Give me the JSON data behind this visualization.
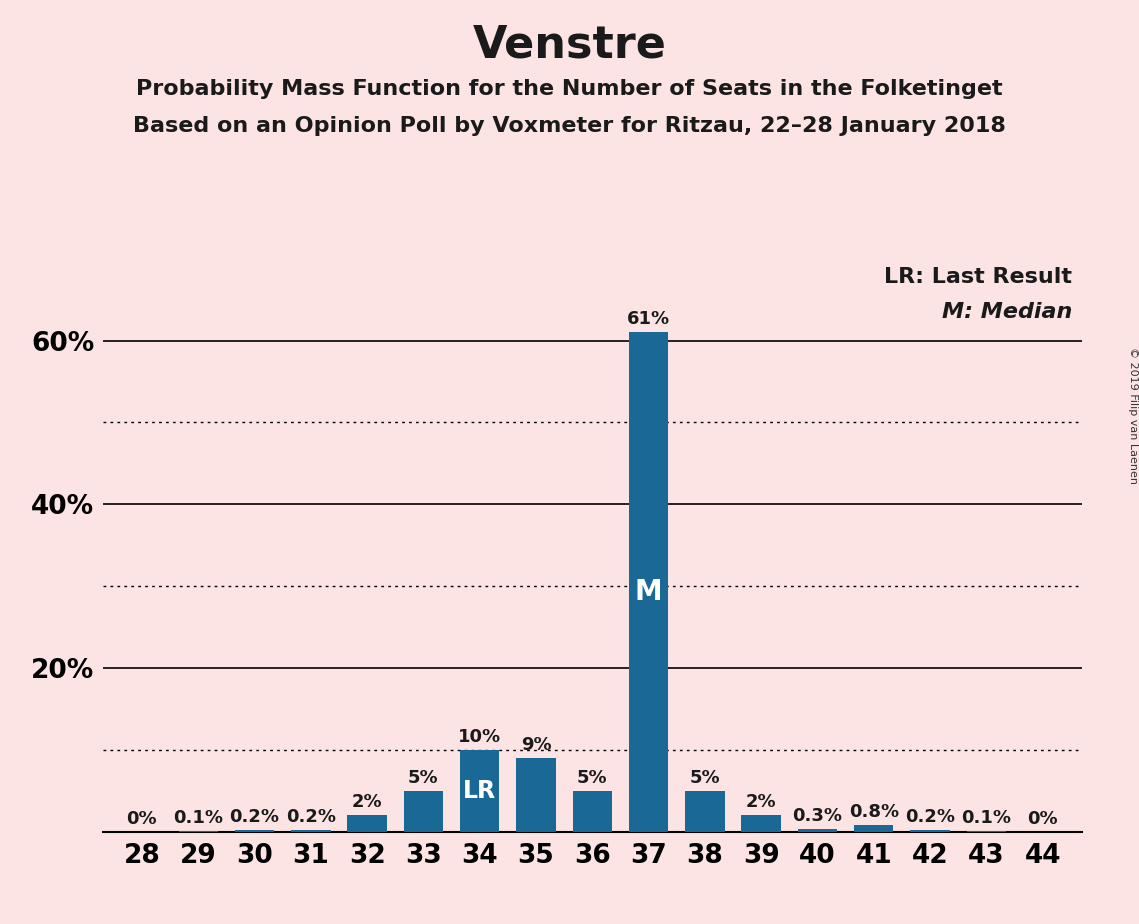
{
  "title": "Venstre",
  "subtitle1": "Probability Mass Function for the Number of Seats in the Folketinget",
  "subtitle2": "Based on an Opinion Poll by Voxmeter for Ritzau, 22–28 January 2018",
  "copyright": "© 2019 Filip van Laenen",
  "legend_lr": "LR: Last Result",
  "legend_m": "M: Median",
  "seats": [
    28,
    29,
    30,
    31,
    32,
    33,
    34,
    35,
    36,
    37,
    38,
    39,
    40,
    41,
    42,
    43,
    44
  ],
  "probabilities": [
    0.0,
    0.1,
    0.2,
    0.2,
    2.0,
    5.0,
    10.0,
    9.0,
    5.0,
    61.0,
    5.0,
    2.0,
    0.3,
    0.8,
    0.2,
    0.1,
    0.0
  ],
  "labels": [
    "0%",
    "0.1%",
    "0.2%",
    "0.2%",
    "2%",
    "5%",
    "10%",
    "9%",
    "5%",
    "61%",
    "5%",
    "2%",
    "0.3%",
    "0.8%",
    "0.2%",
    "0.1%",
    "0%"
  ],
  "bar_color": "#1a6896",
  "background_color": "#fce4e4",
  "lr_seat": 34,
  "median_seat": 37,
  "ylim_max": 70,
  "solid_lines": [
    60,
    40,
    20
  ],
  "dotted_lines": [
    50,
    30,
    10
  ],
  "title_fontsize": 32,
  "subtitle_fontsize": 16,
  "label_fontsize": 13,
  "axis_fontsize": 19,
  "lr_label_fontsize": 17,
  "m_label_fontsize": 20,
  "legend_fontsize": 16
}
